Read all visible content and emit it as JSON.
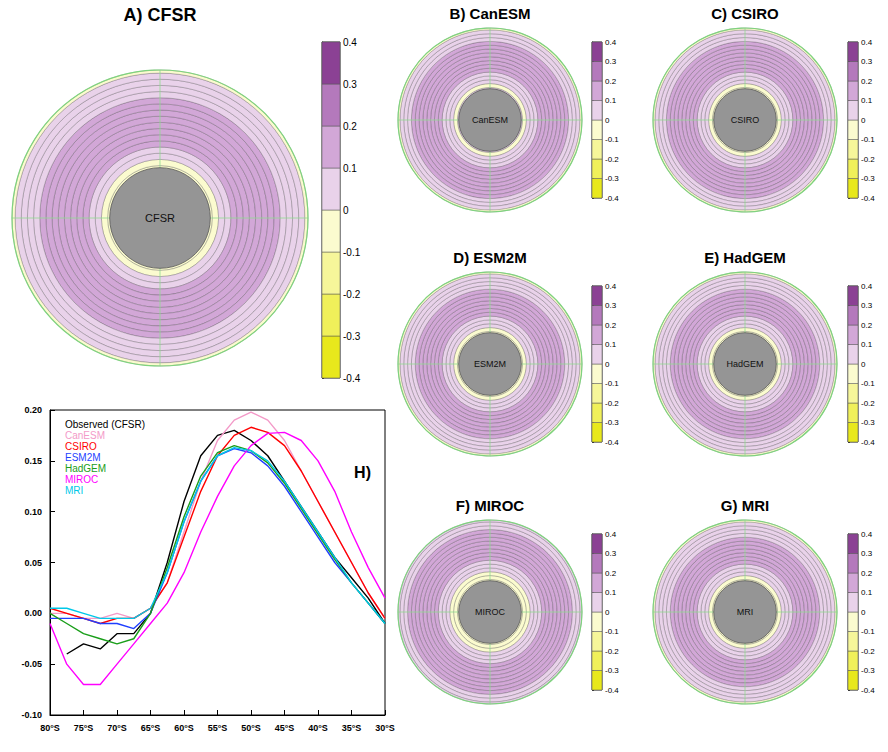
{
  "chart_data": [
    {
      "type": "line",
      "title": "H)",
      "x": [
        -80,
        -77.5,
        -75,
        -72.5,
        -70,
        -67.5,
        -65,
        -62.5,
        -60,
        -57.5,
        -55,
        -52.5,
        -50,
        -47.5,
        -45,
        -42.5,
        -40,
        -37.5,
        -35,
        -32.5,
        -30
      ],
      "xlim": [
        -80,
        -30
      ],
      "xticks": [
        {
          "value": -80,
          "label": "80°S"
        },
        {
          "value": -75,
          "label": "75°S"
        },
        {
          "value": -70,
          "label": "70°S"
        },
        {
          "value": -65,
          "label": "65°S"
        },
        {
          "value": -60,
          "label": "60°S"
        },
        {
          "value": -55,
          "label": "55°S"
        },
        {
          "value": -50,
          "label": "50°S"
        },
        {
          "value": -45,
          "label": "45°S"
        },
        {
          "value": -40,
          "label": "40°S"
        },
        {
          "value": -35,
          "label": "35°S"
        },
        {
          "value": -30,
          "label": "30°S"
        }
      ],
      "ylim": [
        -0.1,
        0.2
      ],
      "yticks": [
        {
          "value": -0.1,
          "label": "-0.10"
        },
        {
          "value": -0.05,
          "label": "-0.05"
        },
        {
          "value": 0,
          "label": "0.00"
        },
        {
          "value": 0.05,
          "label": "0.05"
        },
        {
          "value": 0.1,
          "label": "0.10"
        },
        {
          "value": 0.15,
          "label": "0.15"
        },
        {
          "value": 0.2,
          "label": "0.20"
        }
      ],
      "grid": false,
      "legend": "upper left",
      "series": [
        {
          "name": "Observed (CFSR)",
          "color": "#000000",
          "values": [
            null,
            -0.04,
            -0.03,
            -0.035,
            -0.02,
            -0.02,
            0.0,
            0.05,
            0.11,
            0.155,
            0.175,
            0.18,
            0.17,
            0.155,
            0.13,
            0.105,
            0.08,
            0.055,
            0.035,
            0.015,
            -0.01
          ]
        },
        {
          "name": "CanESM",
          "color": "#f39ac8",
          "values": [
            0.0,
            0.0,
            -0.005,
            -0.005,
            0.0,
            -0.005,
            0.005,
            0.03,
            0.08,
            0.13,
            0.17,
            0.19,
            0.198,
            0.19,
            0.17,
            0.14,
            0.11,
            0.08,
            0.05,
            0.02,
            -0.005
          ]
        },
        {
          "name": "CSIRO",
          "color": "#ff0000",
          "values": [
            0.005,
            0.0,
            -0.005,
            -0.01,
            -0.005,
            -0.005,
            0.005,
            0.03,
            0.075,
            0.12,
            0.155,
            0.175,
            0.183,
            0.178,
            0.165,
            0.14,
            0.11,
            0.08,
            0.05,
            0.02,
            -0.005
          ]
        },
        {
          "name": "ESM2M",
          "color": "#1f3fff",
          "values": [
            -0.005,
            -0.005,
            -0.005,
            -0.01,
            -0.01,
            -0.015,
            0.0,
            0.04,
            0.09,
            0.13,
            0.155,
            0.162,
            0.158,
            0.145,
            0.125,
            0.1,
            0.075,
            0.05,
            0.03,
            0.01,
            -0.01
          ]
        },
        {
          "name": "HadGEM",
          "color": "#1a9e1a",
          "values": [
            0.0,
            -0.01,
            -0.02,
            -0.025,
            -0.03,
            -0.025,
            0.0,
            0.045,
            0.095,
            0.135,
            0.158,
            0.165,
            0.16,
            0.148,
            0.128,
            0.103,
            0.078,
            0.053,
            0.03,
            0.01,
            -0.01
          ]
        },
        {
          "name": "MIROC",
          "color": "#ff00ff",
          "values": [
            -0.01,
            -0.05,
            -0.07,
            -0.07,
            -0.05,
            -0.03,
            -0.01,
            0.01,
            0.04,
            0.08,
            0.115,
            0.145,
            0.165,
            0.177,
            0.178,
            0.17,
            0.15,
            0.12,
            0.08,
            0.045,
            0.015
          ]
        },
        {
          "name": "MRI",
          "color": "#00c8e8",
          "values": [
            0.005,
            0.005,
            0.0,
            -0.005,
            -0.005,
            -0.005,
            0.005,
            0.04,
            0.09,
            0.13,
            0.155,
            0.163,
            0.16,
            0.15,
            0.13,
            0.105,
            0.08,
            0.055,
            0.03,
            0.01,
            -0.01
          ]
        }
      ]
    },
    {
      "type": "map",
      "rlim": [
        -90,
        -30
      ],
      "tick_labels": false,
      "colorbar": {
        "range": [
          -0.4,
          0.4
        ],
        "ticks": [
          -0.4,
          -0.3,
          -0.2,
          -0.1,
          0,
          0.1,
          0.2,
          0.3,
          0.4
        ],
        "colors": [
          "#e8e81c",
          "#f0f05a",
          "#f6f69a",
          "#fbfbcf",
          "#e9d2ea",
          "#d2a7d7",
          "#b479bc",
          "#8b4194"
        ]
      },
      "panels": [
        {
          "title": "A) CFSR",
          "label": "CFSR"
        },
        {
          "title": "B) CanESM",
          "label": "CanESM"
        },
        {
          "title": "C) CSIRO",
          "label": "CSIRO"
        },
        {
          "title": "D) ESM2M",
          "label": "ESM2M"
        },
        {
          "title": "E) HadGEM",
          "label": "HadGEM"
        },
        {
          "title": "F) MIROC",
          "label": "MIROC"
        },
        {
          "title": "G) MRI",
          "label": "MRI"
        }
      ]
    }
  ]
}
